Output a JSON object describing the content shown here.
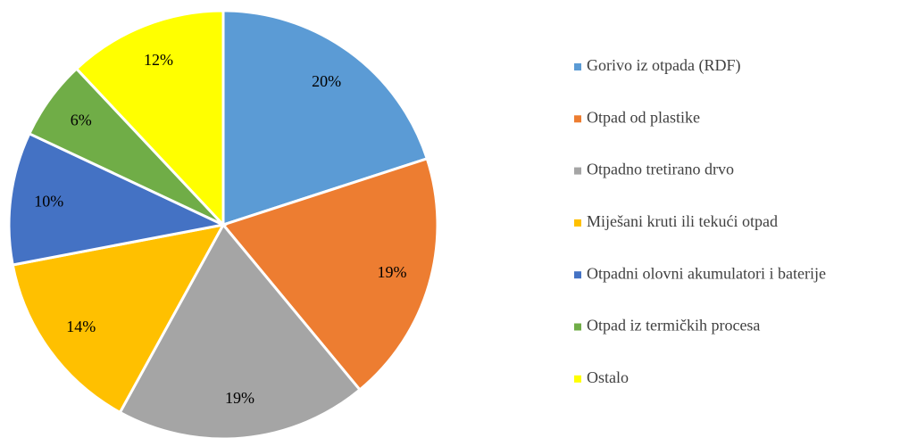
{
  "chart_data": {
    "type": "pie",
    "categories": [
      "Gorivo iz otpada (RDF)",
      "Otpad od plastike",
      "Otpadno tretirano drvo",
      "Miješani kruti ili tekući otpad",
      "Otpadni olovni akumulatori i baterije",
      "Otpad iz termičkih procesa",
      "Ostalo"
    ],
    "values": [
      20,
      19,
      19,
      14,
      10,
      6,
      12
    ],
    "value_labels": [
      "20%",
      "19%",
      "19%",
      "14%",
      "10%",
      "6%",
      "12%"
    ],
    "colors": [
      "#5b9bd5",
      "#ed7d31",
      "#a5a5a5",
      "#ffc000",
      "#4472c4",
      "#70ad47",
      "#ffff00"
    ],
    "legend": "right"
  }
}
